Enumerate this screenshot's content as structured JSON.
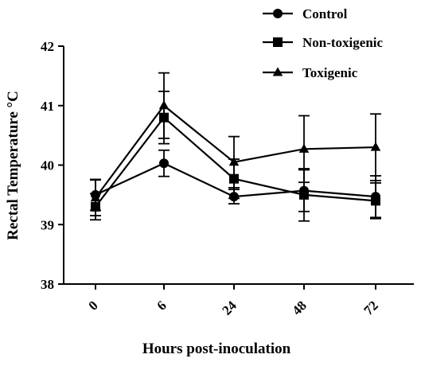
{
  "chart_data": {
    "type": "line",
    "title": "",
    "xlabel": "Hours post-inoculation",
    "ylabel": "Rectal Temperature °C",
    "categories": [
      "0",
      "6",
      "24",
      "48",
      "72"
    ],
    "ylim": [
      38,
      42
    ],
    "yticks": [
      "38",
      "39",
      "40",
      "41",
      "42"
    ],
    "grid": false,
    "legend_position": "top-right",
    "series": [
      {
        "name": "Control",
        "marker": "circle",
        "values": [
          39.5,
          40.03,
          39.47,
          39.57,
          39.47
        ],
        "errors": [
          0.26,
          0.22,
          0.12,
          0.35,
          0.35
        ]
      },
      {
        "name": "Non-toxigenic",
        "marker": "square",
        "values": [
          39.3,
          40.8,
          39.77,
          39.5,
          39.4
        ],
        "errors": [
          0.22,
          0.44,
          0.33,
          0.44,
          0.3
        ]
      },
      {
        "name": "Toxigenic",
        "marker": "triangle",
        "values": [
          39.45,
          41.0,
          40.05,
          40.27,
          40.3
        ],
        "errors": [
          0.3,
          0.55,
          0.43,
          0.56,
          0.56
        ]
      }
    ]
  }
}
